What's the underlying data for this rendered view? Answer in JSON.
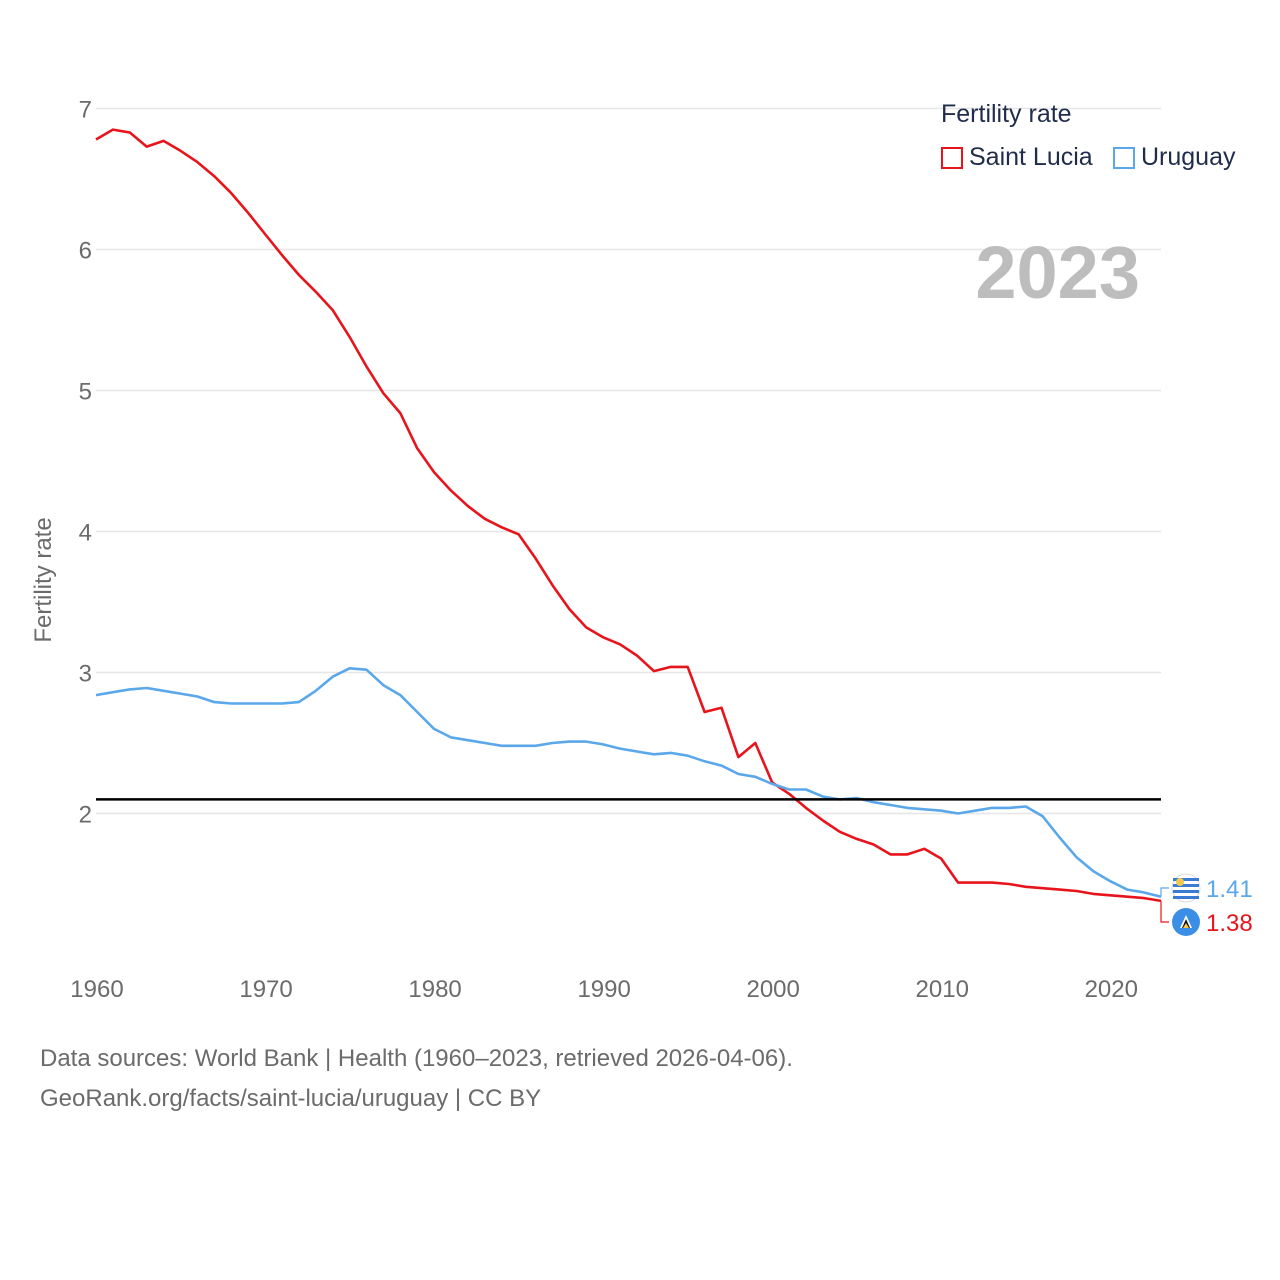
{
  "legend": {
    "title": "Fertility rate",
    "items": [
      {
        "label": "Saint Lucia",
        "color": "#e8141c"
      },
      {
        "label": "Uruguay",
        "color": "#5aa7ea"
      }
    ]
  },
  "footer": {
    "line1": "Data sources: World Bank | Health (1960–2023, retrieved 2026-04-06).",
    "line2": "GeoRank.org/facts/saint-lucia/uruguay | CC BY"
  },
  "chart_data": {
    "type": "line",
    "title": "Fertility rate",
    "year_label": "2023",
    "xlabel": "",
    "ylabel": "Fertility rate",
    "xlim": [
      1960,
      2023
    ],
    "ylim": [
      1,
      7
    ],
    "x_ticks": [
      1960,
      1970,
      1980,
      1990,
      2000,
      2010,
      2020
    ],
    "y_ticks": [
      2,
      3,
      4,
      5,
      6,
      7
    ],
    "grid": true,
    "legend_position": "top-right",
    "reference_line": {
      "y": 2.1,
      "color": "#000000"
    },
    "x": [
      1960,
      1961,
      1962,
      1963,
      1964,
      1965,
      1966,
      1967,
      1968,
      1969,
      1970,
      1971,
      1972,
      1973,
      1974,
      1975,
      1976,
      1977,
      1978,
      1979,
      1980,
      1981,
      1982,
      1983,
      1984,
      1985,
      1986,
      1987,
      1988,
      1989,
      1990,
      1991,
      1992,
      1993,
      1994,
      1995,
      1996,
      1997,
      1998,
      1999,
      2000,
      2001,
      2002,
      2003,
      2004,
      2005,
      2006,
      2007,
      2008,
      2009,
      2010,
      2011,
      2012,
      2013,
      2014,
      2015,
      2016,
      2017,
      2018,
      2019,
      2020,
      2021,
      2022,
      2023
    ],
    "series": [
      {
        "name": "Saint Lucia",
        "color": "#e8141c",
        "end_label": "1.38",
        "values": [
          6.78,
          6.85,
          6.83,
          6.73,
          6.77,
          6.7,
          6.62,
          6.52,
          6.4,
          6.26,
          6.11,
          5.96,
          5.82,
          5.7,
          5.57,
          5.38,
          5.17,
          4.98,
          4.84,
          4.59,
          4.42,
          4.29,
          4.18,
          4.09,
          4.03,
          3.98,
          3.81,
          3.62,
          3.45,
          3.32,
          3.25,
          3.2,
          3.12,
          3.01,
          3.04,
          3.04,
          2.72,
          2.75,
          2.4,
          2.5,
          2.22,
          2.14,
          2.04,
          1.95,
          1.87,
          1.82,
          1.78,
          1.71,
          1.71,
          1.75,
          1.68,
          1.51,
          1.51,
          1.51,
          1.5,
          1.48,
          1.47,
          1.46,
          1.45,
          1.43,
          1.42,
          1.41,
          1.4,
          1.38
        ]
      },
      {
        "name": "Uruguay",
        "color": "#5aa7ea",
        "end_label": "1.41",
        "values": [
          2.84,
          2.86,
          2.88,
          2.89,
          2.87,
          2.85,
          2.83,
          2.79,
          2.78,
          2.78,
          2.78,
          2.78,
          2.79,
          2.87,
          2.97,
          3.03,
          3.02,
          2.91,
          2.84,
          2.72,
          2.6,
          2.54,
          2.52,
          2.5,
          2.48,
          2.48,
          2.48,
          2.5,
          2.51,
          2.51,
          2.49,
          2.46,
          2.44,
          2.42,
          2.43,
          2.41,
          2.37,
          2.34,
          2.28,
          2.26,
          2.21,
          2.17,
          2.17,
          2.12,
          2.1,
          2.11,
          2.08,
          2.06,
          2.04,
          2.03,
          2.02,
          2.0,
          2.02,
          2.04,
          2.04,
          2.05,
          1.98,
          1.83,
          1.69,
          1.59,
          1.52,
          1.46,
          1.44,
          1.41
        ]
      }
    ]
  }
}
